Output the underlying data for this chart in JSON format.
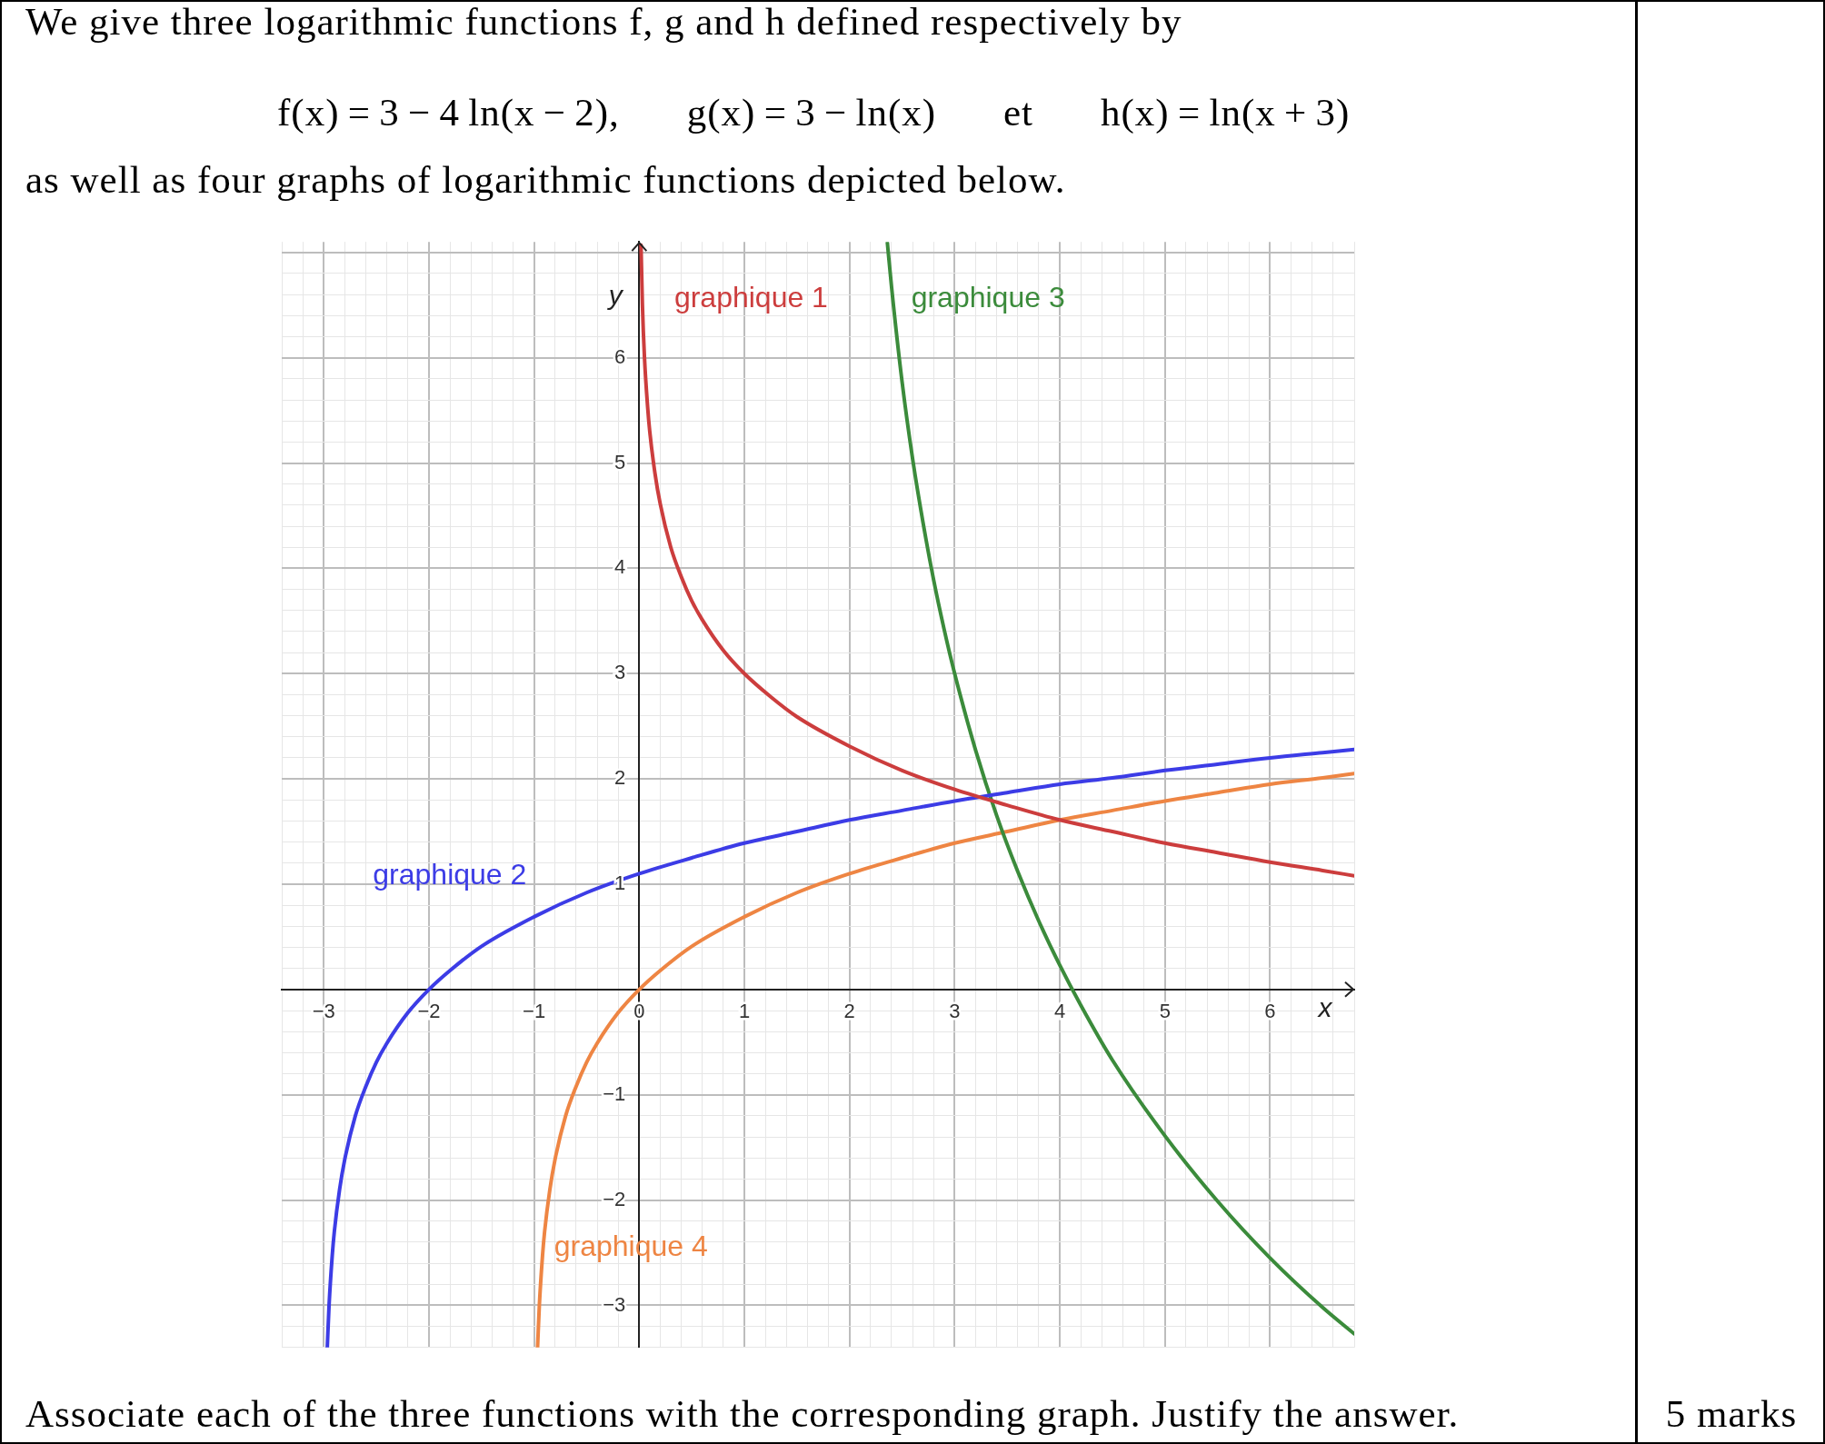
{
  "chart_data": {
    "type": "line",
    "title": "We give three logarithmic functions f, g and h defined respectively by",
    "subtitle": "f(x) = 3 − 4 ln(x − 2),        g(x) = 3 − ln(x)        et        h(x) = ln(x + 3)",
    "xlabel": "x",
    "ylabel": "y",
    "annotations": [
      "as well as four graphs of logarithmic functions depicted below.",
      "Associate each of the three functions with the corresponding graph. Justify the answer.",
      "5 marks"
    ],
    "series": [
      {
        "name": "graphique 1",
        "color": "#cc3d3d",
        "x": [
          0.017,
          0.03,
          0.05,
          0.08,
          0.1,
          0.15,
          0.2,
          0.3,
          0.4,
          0.5,
          0.6,
          0.8,
          1,
          1.25,
          1.5,
          2,
          2.5,
          3,
          3.5,
          4,
          4.5,
          5,
          5.5,
          6,
          6.5,
          6.8
        ],
        "values": [
          7.07,
          6.51,
          6.0,
          5.53,
          5.3,
          4.9,
          4.61,
          4.2,
          3.92,
          3.69,
          3.51,
          3.22,
          3.0,
          2.78,
          2.59,
          2.31,
          2.08,
          1.9,
          1.75,
          1.61,
          1.5,
          1.39,
          1.3,
          1.21,
          1.13,
          1.08
        ]
      },
      {
        "name": "graphique 2",
        "color": "#3c3ce6",
        "x": [
          -2.967,
          -2.95,
          -2.92,
          -2.9,
          -2.85,
          -2.8,
          -2.7,
          -2.6,
          -2.5,
          -2.4,
          -2.2,
          -2,
          -1.8,
          -1.5,
          -1,
          -0.5,
          0,
          0.5,
          1,
          1.5,
          2,
          2.5,
          3,
          3.5,
          4,
          4.5,
          5,
          5.5,
          6,
          6.5,
          6.8
        ],
        "values": [
          -3.4,
          -3.0,
          -2.53,
          -2.3,
          -1.9,
          -1.61,
          -1.2,
          -0.92,
          -0.69,
          -0.51,
          -0.22,
          0,
          0.18,
          0.41,
          0.69,
          0.92,
          1.1,
          1.25,
          1.39,
          1.5,
          1.61,
          1.7,
          1.79,
          1.87,
          1.95,
          2.01,
          2.08,
          2.14,
          2.2,
          2.25,
          2.28
        ]
      },
      {
        "name": "graphique 3",
        "color": "#3b8b3b",
        "x": [
          2.36,
          2.4,
          2.5,
          2.6,
          2.7,
          2.8,
          2.9,
          3,
          3.2,
          3.4,
          3.6,
          3.8,
          4,
          4.2,
          4.5,
          5,
          5.5,
          6,
          6.5,
          6.8
        ],
        "values": [
          7.09,
          6.67,
          5.77,
          5.04,
          4.43,
          3.89,
          3.42,
          3.0,
          2.27,
          1.65,
          1.12,
          0.65,
          0.23,
          -0.15,
          -0.67,
          -1.39,
          -2.01,
          -2.55,
          -3.02,
          -3.27
        ]
      },
      {
        "name": "graphique 4",
        "color": "#ee8543",
        "x": [
          -0.967,
          -0.95,
          -0.92,
          -0.9,
          -0.85,
          -0.8,
          -0.7,
          -0.6,
          -0.5,
          -0.4,
          -0.2,
          0,
          0.2,
          0.5,
          1,
          1.5,
          2,
          2.5,
          3,
          3.5,
          4,
          4.5,
          5,
          5.5,
          6,
          6.5,
          6.8
        ],
        "values": [
          -3.4,
          -3.0,
          -2.53,
          -2.3,
          -1.9,
          -1.61,
          -1.2,
          -0.92,
          -0.69,
          -0.51,
          -0.22,
          0,
          0.18,
          0.41,
          0.69,
          0.92,
          1.1,
          1.25,
          1.39,
          1.5,
          1.61,
          1.7,
          1.79,
          1.87,
          1.95,
          2.01,
          2.05
        ]
      }
    ],
    "xlim": [
      -3.4,
      6.8
    ],
    "ylim": [
      -3.4,
      7.1
    ],
    "xticks": [
      {
        "value": -3.4,
        "label": null
      },
      {
        "value": -3.2,
        "label": null
      },
      {
        "value": -3,
        "label": "−3"
      },
      {
        "value": -2.8,
        "label": null
      },
      {
        "value": -2.6,
        "label": null
      },
      {
        "value": -2.4,
        "label": null
      },
      {
        "value": -2.2,
        "label": null
      },
      {
        "value": -2,
        "label": "−2"
      },
      {
        "value": -1.8,
        "label": null
      },
      {
        "value": -1.6,
        "label": null
      },
      {
        "value": -1.4,
        "label": null
      },
      {
        "value": -1.2,
        "label": null
      },
      {
        "value": -1,
        "label": "−1"
      },
      {
        "value": -0.8,
        "label": null
      },
      {
        "value": -0.6,
        "label": null
      },
      {
        "value": -0.4,
        "label": null
      },
      {
        "value": -0.2,
        "label": null
      },
      0,
      {
        "value": 0.2,
        "label": null
      },
      {
        "value": 0.4,
        "label": null
      },
      {
        "value": 0.6,
        "label": null
      },
      {
        "value": 0.8,
        "label": null
      },
      1,
      {
        "value": 1.2,
        "label": null
      },
      {
        "value": 1.4,
        "label": null
      },
      {
        "value": 1.6,
        "label": null
      },
      {
        "value": 1.8,
        "label": null
      },
      2,
      {
        "value": 2.2,
        "label": null
      },
      {
        "value": 2.4,
        "label": null
      },
      {
        "value": 2.6,
        "label": null
      },
      {
        "value": 2.8,
        "label": null
      },
      3,
      {
        "value": 3.2,
        "label": null
      },
      {
        "value": 3.4,
        "label": null
      },
      {
        "value": 3.6,
        "label": null
      },
      {
        "value": 3.8,
        "label": null
      },
      4,
      {
        "value": 4.2,
        "label": null
      },
      {
        "value": 4.4,
        "label": null
      },
      {
        "value": 4.6,
        "label": null
      },
      {
        "value": 4.8,
        "label": null
      },
      5,
      {
        "value": 5.2,
        "label": null
      },
      {
        "value": 5.4,
        "label": null
      },
      {
        "value": 5.6,
        "label": null
      },
      {
        "value": 5.8,
        "label": null
      },
      6,
      {
        "value": 6.2,
        "label": null
      },
      {
        "value": 6.4,
        "label": null
      },
      {
        "value": 6.6,
        "label": null
      },
      {
        "value": 6.8,
        "label": null
      }
    ],
    "yticks": [
      {
        "value": -3.4,
        "label": null
      },
      {
        "value": -3.2,
        "label": null
      },
      {
        "value": -3,
        "label": "−3"
      },
      {
        "value": -2.8,
        "label": null
      },
      {
        "value": -2.6,
        "label": null
      },
      {
        "value": -2.4,
        "label": null
      },
      {
        "value": -2.2,
        "label": null
      },
      {
        "value": -2,
        "label": "−2"
      },
      {
        "value": -1.8,
        "label": null
      },
      {
        "value": -1.6,
        "label": null
      },
      {
        "value": -1.4,
        "label": null
      },
      {
        "value": -1.2,
        "label": null
      },
      {
        "value": -1,
        "label": "−1"
      },
      {
        "value": -0.8,
        "label": null
      },
      {
        "value": -0.6,
        "label": null
      },
      {
        "value": -0.4,
        "label": null
      },
      {
        "value": -0.2,
        "label": null
      },
      {
        "value": 0,
        "label": null
      },
      {
        "value": 0.2,
        "label": null
      },
      {
        "value": 0.4,
        "label": null
      },
      {
        "value": 0.6,
        "label": null
      },
      {
        "value": 0.8,
        "label": null
      },
      1,
      {
        "value": 1.2,
        "label": null
      },
      {
        "value": 1.4,
        "label": null
      },
      {
        "value": 1.6,
        "label": null
      },
      {
        "value": 1.8,
        "label": null
      },
      2,
      {
        "value": 2.2,
        "label": null
      },
      {
        "value": 2.4,
        "label": null
      },
      {
        "value": 2.6,
        "label": null
      },
      {
        "value": 2.8,
        "label": null
      },
      3,
      {
        "value": 3.2,
        "label": null
      },
      {
        "value": 3.4,
        "label": null
      },
      {
        "value": 3.6,
        "label": null
      },
      {
        "value": 3.8,
        "label": null
      },
      4,
      {
        "value": 4.2,
        "label": null
      },
      {
        "value": 4.4,
        "label": null
      },
      {
        "value": 4.6,
        "label": null
      },
      {
        "value": 4.8,
        "label": null
      },
      5,
      {
        "value": 5.2,
        "label": null
      },
      {
        "value": 5.4,
        "label": null
      },
      {
        "value": 5.6,
        "label": null
      },
      {
        "value": 5.8,
        "label": null
      },
      6,
      {
        "value": 6.2,
        "label": null
      },
      {
        "value": 6.4,
        "label": null
      },
      {
        "value": 6.6,
        "label": null
      },
      {
        "value": 6.8,
        "label": null
      },
      {
        "value": 7,
        "label": null
      }
    ],
    "grid": true,
    "marker": "none",
    "line_style": "solid"
  }
}
